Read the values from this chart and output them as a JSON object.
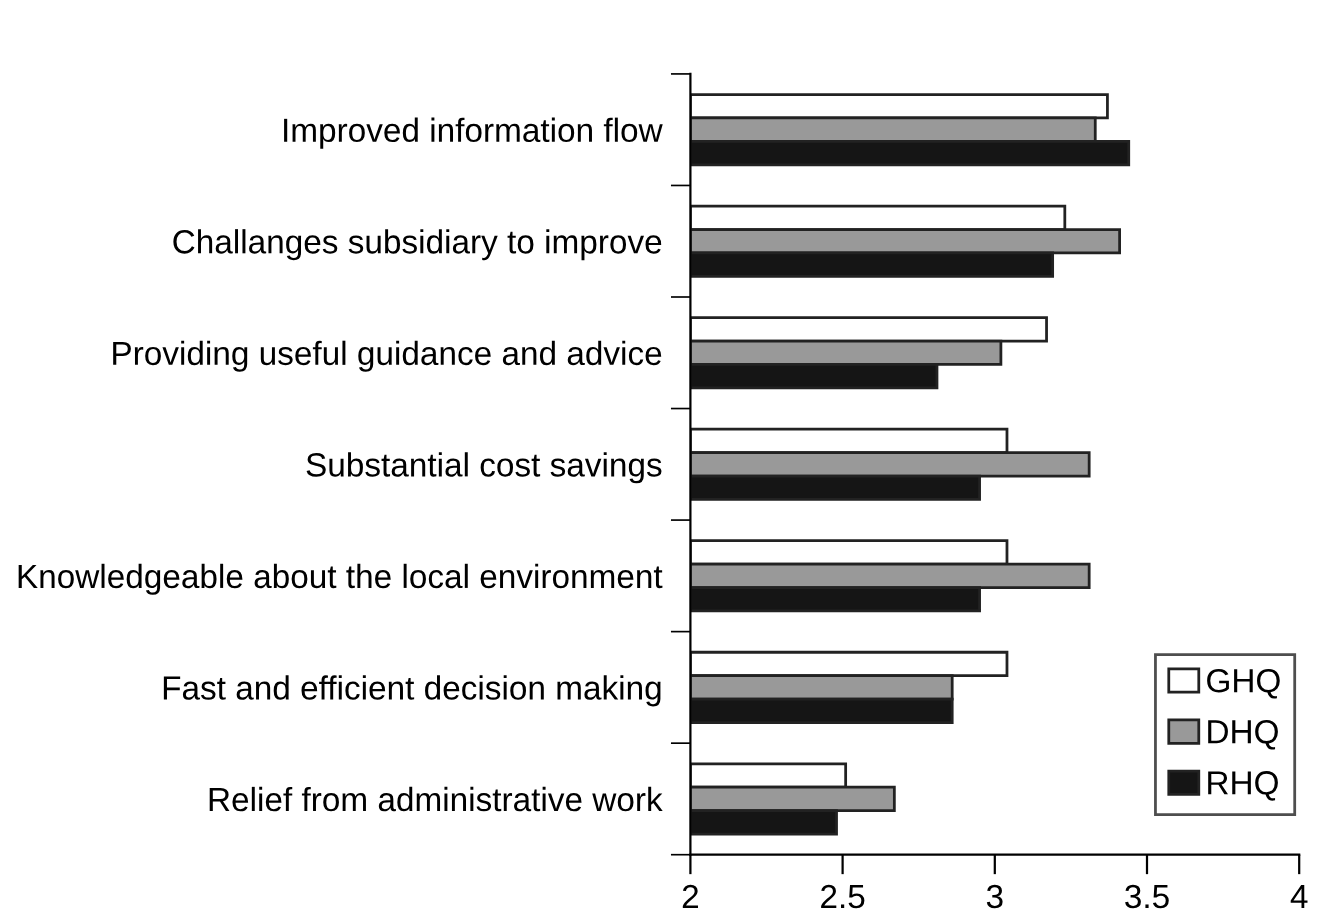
{
  "chart_data": {
    "type": "bar",
    "orientation": "horizontal",
    "categories": [
      "Improved information flow",
      "Challanges subsidiary to improve",
      "Providing useful guidance and advice",
      "Substantial cost savings",
      "Knowledgeable about the local environment",
      "Fast and efficient decision making",
      "Relief from administrative work"
    ],
    "series": [
      {
        "name": "GHQ",
        "color": "#ffffff",
        "values": [
          3.37,
          3.23,
          3.17,
          3.04,
          3.04,
          3.04,
          2.51
        ]
      },
      {
        "name": "DHQ",
        "color": "#999999",
        "values": [
          3.33,
          3.41,
          3.02,
          3.31,
          3.31,
          2.86,
          2.67
        ]
      },
      {
        "name": "RHQ",
        "color": "#151515",
        "values": [
          3.44,
          3.19,
          2.81,
          2.95,
          2.95,
          2.86,
          2.48
        ]
      }
    ],
    "xlim": [
      2,
      4
    ],
    "xticks": [
      2,
      2.5,
      3,
      3.5,
      4
    ],
    "grid": false,
    "legend": "bottom right"
  }
}
